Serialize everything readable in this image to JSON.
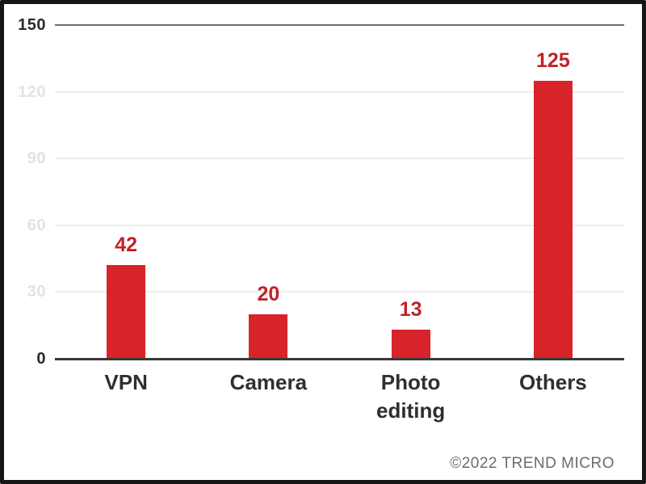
{
  "chart_data": {
    "type": "bar",
    "categories": [
      "VPN",
      "Camera",
      "Photo editing",
      "Others"
    ],
    "values": [
      42,
      20,
      13,
      125
    ],
    "yticks": [
      0,
      30,
      60,
      90,
      120,
      150
    ],
    "ylim": [
      0,
      150
    ],
    "title": "",
    "xlabel": "",
    "ylabel": "",
    "grid": true,
    "legend": "none",
    "bar_color": "#d8232a",
    "value_label_color": "#bf2228"
  },
  "colors": {
    "grid_light": "#ededed",
    "grid_dark": "#6e6e6e",
    "axis": "#383838",
    "tick_dark": "#2b2b2b",
    "tick_light": "#e2e2e2",
    "category": "#2f2f2f",
    "attribution": "#6b6b6b",
    "frame_border": "#161616"
  },
  "attribution": "©2022 TREND MICRO"
}
